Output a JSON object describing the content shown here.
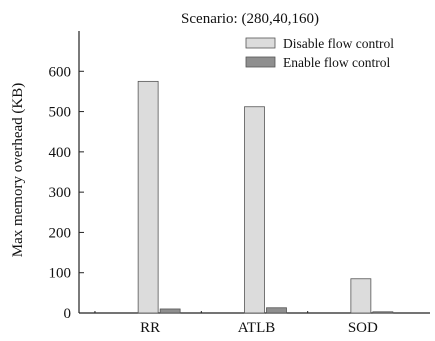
{
  "chart_data": {
    "type": "bar",
    "title": "Scenario: (280,40,160)",
    "xlabel": "",
    "ylabel": "Max memory overhead (KB)",
    "categories": [
      "RR",
      "ATLB",
      "SOD"
    ],
    "series": [
      {
        "name": "Disable flow control",
        "values": [
          575,
          512,
          85
        ],
        "color": "#dcdcdc"
      },
      {
        "name": "Enable flow control",
        "values": [
          10,
          13,
          3
        ],
        "color": "#8f8f8f"
      }
    ],
    "ylim": [
      0,
      700
    ],
    "yticks": [
      0,
      100,
      200,
      300,
      400,
      500,
      600
    ],
    "grid": false,
    "legend": "top-right"
  }
}
